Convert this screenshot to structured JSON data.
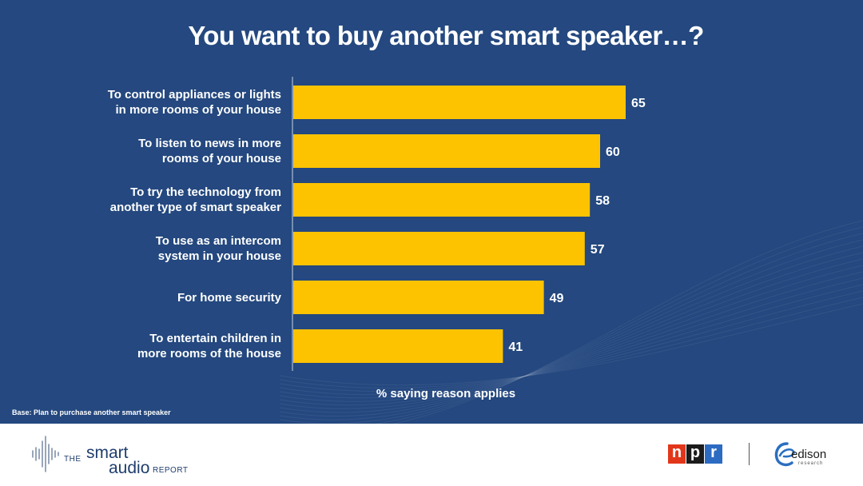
{
  "title": "You want to buy another smart speaker…?",
  "base_note": "Base: Plan to purchase another smart speaker",
  "colors": {
    "background": "#24487f",
    "bar": "#fdc300",
    "text": "#ffffff"
  },
  "chart_data": {
    "type": "bar",
    "orientation": "horizontal",
    "title": "You want to buy another smart speaker…?",
    "xlabel": "% saying reason applies",
    "ylabel": "",
    "xlim": [
      0,
      100
    ],
    "grid": false,
    "categories": [
      "To control appliances or lights\nin more rooms of your house",
      "To listen to news in more\nrooms of your house",
      "To try the technology from\nanother type of smart speaker",
      "To use as an intercom\nsystem in your house",
      "For home security",
      "To entertain children in\nmore rooms of the house"
    ],
    "values": [
      65,
      60,
      58,
      57,
      49,
      41
    ],
    "data_labels": [
      "65",
      "60",
      "58",
      "57",
      "49",
      "41"
    ]
  },
  "footer": {
    "report_logo": {
      "prefix": "THE",
      "word1": "smart",
      "word2": "audio",
      "suffix": "REPORT"
    },
    "npr_logo": {
      "letters": [
        "n",
        "p",
        "r"
      ],
      "colors": [
        "#e2361b",
        "#1b1b1b",
        "#2c6bc2"
      ]
    },
    "edison_logo": {
      "name": "edison",
      "sub": "research"
    }
  }
}
